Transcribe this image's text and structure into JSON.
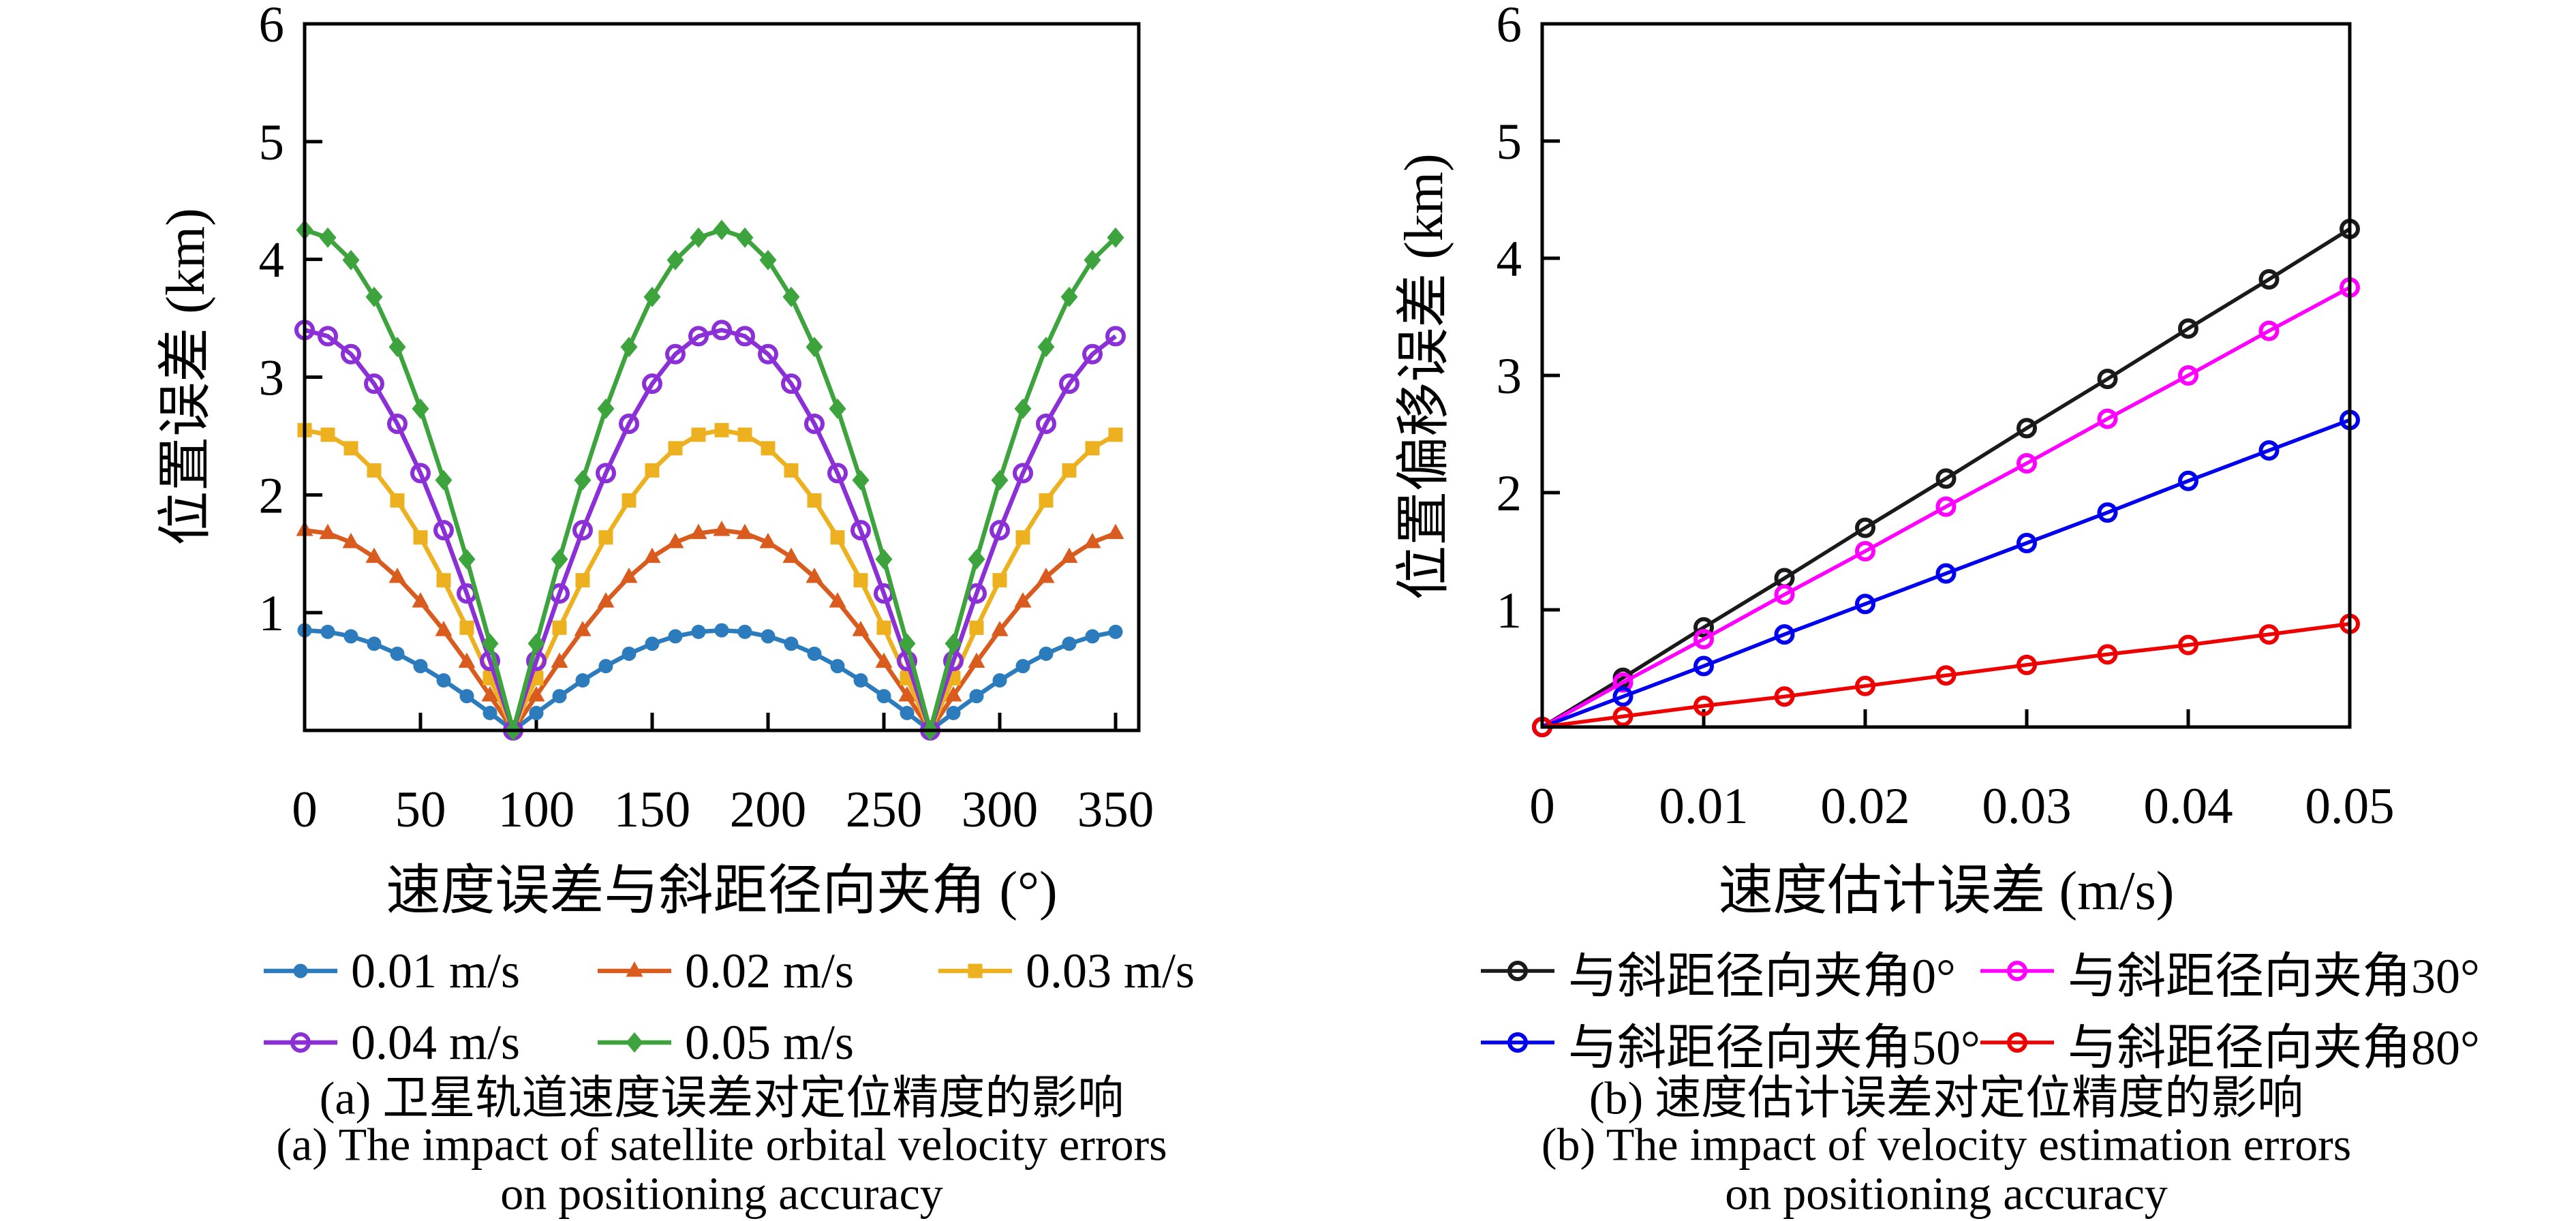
{
  "chart_data": [
    {
      "type": "line",
      "panel": "a",
      "caption_cn": "(a) 卫星轨道速度误差对定位精度的影响",
      "caption_en1": "(a) The impact of satellite orbital velocity errors",
      "caption_en2": "on positioning accuracy",
      "xlabel": "速度误差与斜距径向夹角 (°)",
      "ylabel": "位置误差 (km)",
      "xlim": [
        0,
        360
      ],
      "ylim": [
        0,
        6
      ],
      "grid": false,
      "legend_position": "below-two-rows",
      "x_tick_values": [
        0,
        50,
        100,
        150,
        200,
        250,
        300,
        350
      ],
      "x_tick_labels": [
        "0",
        "50",
        "100",
        "150",
        "200",
        "250",
        "300",
        "350"
      ],
      "y_tick_values": [
        1,
        2,
        3,
        4,
        5,
        6
      ],
      "y_tick_labels": [
        "1",
        "2",
        "3",
        "4",
        "5",
        "6"
      ],
      "x": [
        0,
        10,
        20,
        30,
        40,
        50,
        60,
        70,
        80,
        90,
        100,
        110,
        120,
        130,
        140,
        150,
        160,
        170,
        180,
        190,
        200,
        210,
        220,
        230,
        240,
        250,
        260,
        270,
        280,
        290,
        300,
        310,
        320,
        330,
        340,
        350
      ],
      "series": [
        {
          "name": "0.01 m/s",
          "color": "#2B7BBD",
          "marker": "circle",
          "values": [
            0.85,
            0.837,
            0.799,
            0.736,
            0.651,
            0.546,
            0.425,
            0.291,
            0.148,
            0,
            0.148,
            0.291,
            0.425,
            0.546,
            0.651,
            0.736,
            0.799,
            0.837,
            0.85,
            0.837,
            0.799,
            0.736,
            0.651,
            0.546,
            0.425,
            0.291,
            0.148,
            0,
            0.148,
            0.291,
            0.425,
            0.546,
            0.651,
            0.736,
            0.799,
            0.837
          ]
        },
        {
          "name": "0.02 m/s",
          "color": "#D95B1D",
          "marker": "triangle",
          "values": [
            1.7,
            1.674,
            1.597,
            1.472,
            1.302,
            1.093,
            0.85,
            0.581,
            0.295,
            0,
            0.295,
            0.581,
            0.85,
            1.093,
            1.302,
            1.472,
            1.597,
            1.674,
            1.7,
            1.674,
            1.597,
            1.472,
            1.302,
            1.093,
            0.85,
            0.581,
            0.295,
            0,
            0.295,
            0.581,
            0.85,
            1.093,
            1.302,
            1.472,
            1.597,
            1.674
          ]
        },
        {
          "name": "0.03 m/s",
          "color": "#EDB120",
          "marker": "square",
          "values": [
            2.55,
            2.511,
            2.396,
            2.208,
            1.953,
            1.639,
            1.275,
            0.872,
            0.443,
            0,
            0.443,
            0.872,
            1.275,
            1.639,
            1.953,
            2.208,
            2.396,
            2.511,
            2.55,
            2.511,
            2.396,
            2.208,
            1.953,
            1.639,
            1.275,
            0.872,
            0.443,
            0,
            0.443,
            0.872,
            1.275,
            1.639,
            1.953,
            2.208,
            2.396,
            2.511
          ]
        },
        {
          "name": "0.04 m/s",
          "color": "#8B2FD6",
          "marker": "ring",
          "values": [
            3.4,
            3.348,
            3.195,
            2.944,
            2.604,
            2.185,
            1.7,
            1.163,
            0.59,
            0,
            0.59,
            1.163,
            1.7,
            2.185,
            2.604,
            2.944,
            3.195,
            3.348,
            3.4,
            3.348,
            3.195,
            2.944,
            2.604,
            2.185,
            1.7,
            1.163,
            0.59,
            0,
            0.59,
            1.163,
            1.7,
            2.185,
            2.604,
            2.944,
            3.195,
            3.348
          ]
        },
        {
          "name": "0.05 m/s",
          "color": "#3DA43D",
          "marker": "diamond",
          "values": [
            4.25,
            4.185,
            3.994,
            3.681,
            3.256,
            2.732,
            2.125,
            1.454,
            0.738,
            0,
            0.738,
            1.454,
            2.125,
            2.732,
            3.256,
            3.681,
            3.994,
            4.185,
            4.25,
            4.185,
            3.994,
            3.681,
            3.256,
            2.732,
            2.125,
            1.454,
            0.738,
            0,
            0.738,
            1.454,
            2.125,
            2.732,
            3.256,
            3.681,
            3.994,
            4.185
          ]
        }
      ]
    },
    {
      "type": "line",
      "panel": "b",
      "caption_cn": "(b) 速度估计误差对定位精度的影响",
      "caption_en1": "(b) The impact of velocity estimation errors",
      "caption_en2": "on positioning accuracy",
      "xlabel": "速度估计误差 (m/s)",
      "ylabel": "位置偏移误差 (km)",
      "xlim": [
        0,
        0.05
      ],
      "ylim": [
        0,
        6
      ],
      "grid": false,
      "legend_position": "below-two-rows",
      "x_tick_values": [
        0,
        0.01,
        0.02,
        0.03,
        0.04,
        0.05
      ],
      "x_tick_labels": [
        "0",
        "0.01",
        "0.02",
        "0.03",
        "0.04",
        "0.05"
      ],
      "y_tick_values": [
        1,
        2,
        3,
        4,
        5,
        6
      ],
      "y_tick_labels": [
        "1",
        "2",
        "3",
        "4",
        "5",
        "6"
      ],
      "x": [
        0,
        0.005,
        0.01,
        0.015,
        0.02,
        0.025,
        0.03,
        0.035,
        0.04,
        0.045,
        0.05
      ],
      "series": [
        {
          "name": "与斜距径向夹角0°",
          "color": "#1A1A1A",
          "marker": "ring",
          "values": [
            0,
            0.42,
            0.85,
            1.27,
            1.7,
            2.12,
            2.55,
            2.97,
            3.4,
            3.82,
            4.25
          ]
        },
        {
          "name": "与斜距径向夹角30°",
          "color": "#FF00FF",
          "marker": "ring",
          "values": [
            0,
            0.38,
            0.75,
            1.13,
            1.5,
            1.88,
            2.25,
            2.63,
            3.0,
            3.38,
            3.75
          ]
        },
        {
          "name": "与斜距径向夹角50°",
          "color": "#0000EE",
          "marker": "ring",
          "values": [
            0,
            0.26,
            0.52,
            0.79,
            1.05,
            1.31,
            1.57,
            1.83,
            2.1,
            2.36,
            2.62
          ]
        },
        {
          "name": "与斜距径向夹角80°",
          "color": "#EF0000",
          "marker": "ring",
          "values": [
            0,
            0.09,
            0.18,
            0.26,
            0.35,
            0.44,
            0.53,
            0.62,
            0.7,
            0.79,
            0.88
          ]
        }
      ]
    }
  ]
}
